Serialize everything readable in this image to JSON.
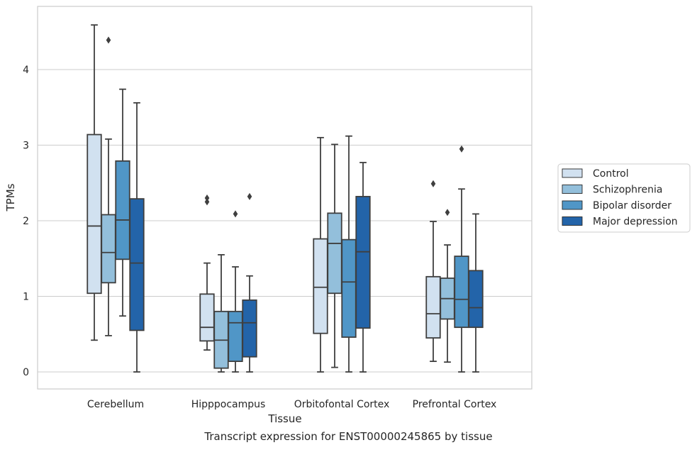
{
  "chart_data": {
    "type": "box",
    "caption": "Transcript expression for ENST00000245865 by tissue",
    "xlabel": "Tissue",
    "ylabel": "TPMs",
    "ylim": [
      -0.22,
      4.83
    ],
    "yticks": [
      0,
      1,
      2,
      3,
      4
    ],
    "grid": "horizontal",
    "legend_position": "right",
    "categories": [
      "Cerebellum",
      "Hipppocampus",
      "Orbitofontal Cortex",
      "Prefrontal Cortex"
    ],
    "series": [
      {
        "name": "Control",
        "color": "#d1e1f0",
        "boxes": [
          {
            "whislo": 0.42,
            "q1": 1.04,
            "med": 1.93,
            "q3": 3.14,
            "whishi": 4.59,
            "fliers": []
          },
          {
            "whislo": 0.29,
            "q1": 0.41,
            "med": 0.59,
            "q3": 1.03,
            "whishi": 1.44,
            "fliers": [
              2.25,
              2.3
            ]
          },
          {
            "whislo": 0.0,
            "q1": 0.51,
            "med": 1.12,
            "q3": 1.76,
            "whishi": 3.1,
            "fliers": []
          },
          {
            "whislo": 0.14,
            "q1": 0.45,
            "med": 0.77,
            "q3": 1.26,
            "whishi": 1.99,
            "fliers": [
              2.49
            ]
          }
        ]
      },
      {
        "name": "Schizophrenia",
        "color": "#93bfdb",
        "boxes": [
          {
            "whislo": 0.48,
            "q1": 1.18,
            "med": 1.58,
            "q3": 2.08,
            "whishi": 3.08,
            "fliers": [
              4.39
            ]
          },
          {
            "whislo": 0.0,
            "q1": 0.05,
            "med": 0.42,
            "q3": 0.8,
            "whishi": 1.55,
            "fliers": []
          },
          {
            "whislo": 0.06,
            "q1": 1.04,
            "med": 1.7,
            "q3": 2.1,
            "whishi": 3.01,
            "fliers": []
          },
          {
            "whislo": 0.13,
            "q1": 0.7,
            "med": 0.97,
            "q3": 1.24,
            "whishi": 1.68,
            "fliers": [
              2.11
            ]
          }
        ]
      },
      {
        "name": "Bipolar disorder",
        "color": "#5096c7",
        "boxes": [
          {
            "whislo": 0.74,
            "q1": 1.49,
            "med": 2.01,
            "q3": 2.79,
            "whishi": 3.74,
            "fliers": []
          },
          {
            "whislo": 0.0,
            "q1": 0.14,
            "med": 0.65,
            "q3": 0.8,
            "whishi": 1.39,
            "fliers": [
              2.09
            ]
          },
          {
            "whislo": 0.0,
            "q1": 0.46,
            "med": 1.19,
            "q3": 1.75,
            "whishi": 3.12,
            "fliers": []
          },
          {
            "whislo": 0.0,
            "q1": 0.59,
            "med": 0.96,
            "q3": 1.53,
            "whishi": 2.42,
            "fliers": [
              2.95
            ]
          }
        ]
      },
      {
        "name": "Major depression",
        "color": "#2364a9",
        "boxes": [
          {
            "whislo": 0.0,
            "q1": 0.55,
            "med": 1.44,
            "q3": 2.29,
            "whishi": 3.56,
            "fliers": []
          },
          {
            "whislo": 0.0,
            "q1": 0.2,
            "med": 0.65,
            "q3": 0.95,
            "whishi": 1.27,
            "fliers": [
              2.32
            ]
          },
          {
            "whislo": 0.0,
            "q1": 0.58,
            "med": 1.59,
            "q3": 2.32,
            "whishi": 2.77,
            "fliers": []
          },
          {
            "whislo": 0.0,
            "q1": 0.59,
            "med": 0.85,
            "q3": 1.34,
            "whishi": 2.09,
            "fliers": []
          }
        ]
      }
    ]
  }
}
